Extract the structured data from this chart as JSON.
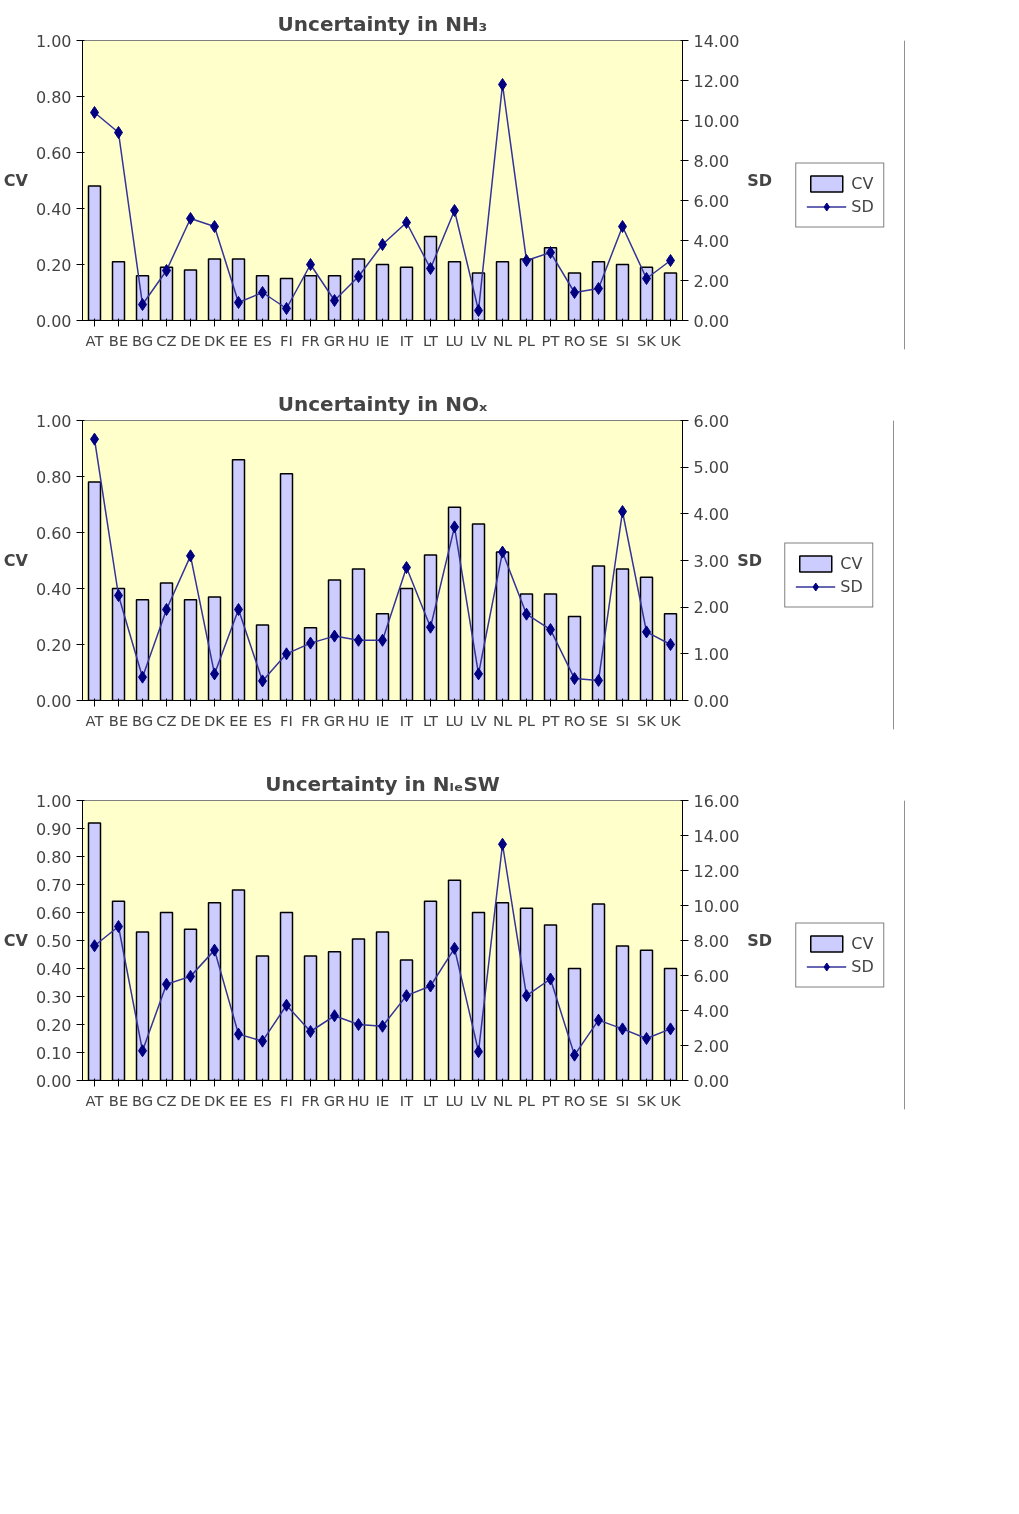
{
  "chart_data": [
    {
      "type": "bar",
      "title": "Uncertainty in NH₃",
      "ylabel": "CV",
      "y2label": "SD",
      "categories": [
        "AT",
        "BE",
        "BG",
        "CZ",
        "DE",
        "DK",
        "EE",
        "ES",
        "FI",
        "FR",
        "GR",
        "HU",
        "IE",
        "IT",
        "LT",
        "LU",
        "LV",
        "NL",
        "PL",
        "PT",
        "RO",
        "SE",
        "SI",
        "SK",
        "UK"
      ],
      "ylim": [
        0,
        1
      ],
      "yticks": [
        {
          "value": 0,
          "label": "0.00"
        },
        {
          "value": 0.2,
          "label": "0.20"
        },
        {
          "value": 0.4,
          "label": "0.40"
        },
        {
          "value": 0.6,
          "label": "0.60"
        },
        {
          "value": 0.8,
          "label": "0.80"
        },
        {
          "value": 1,
          "label": "1.00"
        }
      ],
      "y2lim": [
        0,
        14
      ],
      "y2ticks": [
        {
          "value": 0,
          "label": "0.00"
        },
        {
          "value": 2,
          "label": "2.00"
        },
        {
          "value": 4,
          "label": "4.00"
        },
        {
          "value": 6,
          "label": "6.00"
        },
        {
          "value": 8,
          "label": "8.00"
        },
        {
          "value": 10,
          "label": "10.00"
        },
        {
          "value": 12,
          "label": "12.00"
        },
        {
          "value": 14,
          "label": "14.00"
        }
      ],
      "series": [
        {
          "name": "CV",
          "color": "#ccccff",
          "values": [
            0.48,
            0.21,
            0.16,
            0.19,
            0.18,
            0.22,
            0.22,
            0.16,
            0.15,
            0.16,
            0.16,
            0.22,
            0.2,
            0.19,
            0.3,
            0.21,
            0.17,
            0.21,
            0.22,
            0.26,
            0.17,
            0.21,
            0.2,
            0.19,
            0.17
          ]
        },
        {
          "name": "SD",
          "type": "line",
          "axis": "y2",
          "color": "#000080",
          "values": [
            10.4,
            9.4,
            0.8,
            2.5,
            5.1,
            4.7,
            0.9,
            1.4,
            0.6,
            2.8,
            1.0,
            2.2,
            3.8,
            4.9,
            2.6,
            5.5,
            0.5,
            11.8,
            3.0,
            3.4,
            1.4,
            1.6,
            4.7,
            2.1,
            3.0
          ]
        }
      ],
      "legend": "right",
      "marker": "diamond",
      "line_style": "solid",
      "grid": false
    },
    {
      "type": "bar",
      "title": "Uncertainty in NOₓ",
      "ylabel": "CV",
      "y2label": "SD",
      "categories": [
        "AT",
        "BE",
        "BG",
        "CZ",
        "DE",
        "DK",
        "EE",
        "ES",
        "FI",
        "FR",
        "GR",
        "HU",
        "IE",
        "IT",
        "LT",
        "LU",
        "LV",
        "NL",
        "PL",
        "PT",
        "RO",
        "SE",
        "SI",
        "SK",
        "UK"
      ],
      "ylim": [
        0,
        1
      ],
      "yticks": [
        {
          "value": 0,
          "label": "0.00"
        },
        {
          "value": 0.2,
          "label": "0.20"
        },
        {
          "value": 0.4,
          "label": "0.40"
        },
        {
          "value": 0.6,
          "label": "0.60"
        },
        {
          "value": 0.8,
          "label": "0.80"
        },
        {
          "value": 1,
          "label": "1.00"
        }
      ],
      "y2lim": [
        0,
        6
      ],
      "y2ticks": [
        {
          "value": 0,
          "label": "0.00"
        },
        {
          "value": 1,
          "label": "1.00"
        },
        {
          "value": 2,
          "label": "2.00"
        },
        {
          "value": 3,
          "label": "3.00"
        },
        {
          "value": 4,
          "label": "4.00"
        },
        {
          "value": 5,
          "label": "5.00"
        },
        {
          "value": 6,
          "label": "6.00"
        }
      ],
      "series": [
        {
          "name": "CV",
          "color": "#ccccff",
          "values": [
            0.78,
            0.4,
            0.36,
            0.42,
            0.36,
            0.37,
            0.86,
            0.27,
            0.81,
            0.26,
            0.43,
            0.47,
            0.31,
            0.4,
            0.52,
            0.69,
            0.63,
            0.53,
            0.38,
            0.38,
            0.3,
            0.48,
            0.47,
            0.44,
            0.31
          ]
        },
        {
          "name": "SD",
          "type": "line",
          "axis": "y2",
          "color": "#000080",
          "values": [
            5.6,
            2.25,
            0.5,
            1.95,
            3.1,
            0.57,
            1.95,
            0.42,
            1.0,
            1.23,
            1.38,
            1.29,
            1.29,
            2.85,
            1.57,
            3.72,
            0.57,
            3.18,
            1.85,
            1.52,
            0.47,
            0.43,
            4.05,
            1.47,
            1.2
          ]
        }
      ],
      "legend": "right",
      "marker": "diamond",
      "line_style": "solid",
      "grid": false
    },
    {
      "type": "bar",
      "title": "Uncertainty in NₗₑSW",
      "ylabel": "CV",
      "y2label": "SD",
      "categories": [
        "AT",
        "BE",
        "BG",
        "CZ",
        "DE",
        "DK",
        "EE",
        "ES",
        "FI",
        "FR",
        "GR",
        "HU",
        "IE",
        "IT",
        "LT",
        "LU",
        "LV",
        "NL",
        "PL",
        "PT",
        "RO",
        "SE",
        "SI",
        "SK",
        "UK"
      ],
      "ylim": [
        0,
        1
      ],
      "yticks": [
        {
          "value": 0,
          "label": "0.00"
        },
        {
          "value": 0.1,
          "label": "0.10"
        },
        {
          "value": 0.2,
          "label": "0.20"
        },
        {
          "value": 0.3,
          "label": "0.30"
        },
        {
          "value": 0.4,
          "label": "0.40"
        },
        {
          "value": 0.5,
          "label": "0.50"
        },
        {
          "value": 0.6,
          "label": "0.60"
        },
        {
          "value": 0.7,
          "label": "0.70"
        },
        {
          "value": 0.8,
          "label": "0.80"
        },
        {
          "value": 0.9,
          "label": "0.90"
        },
        {
          "value": 1,
          "label": "1.00"
        }
      ],
      "y2lim": [
        0,
        16
      ],
      "y2ticks": [
        {
          "value": 0,
          "label": "0.00"
        },
        {
          "value": 2,
          "label": "2.00"
        },
        {
          "value": 4,
          "label": "4.00"
        },
        {
          "value": 6,
          "label": "6.00"
        },
        {
          "value": 8,
          "label": "8.00"
        },
        {
          "value": 10,
          "label": "10.00"
        },
        {
          "value": 12,
          "label": "12.00"
        },
        {
          "value": 14,
          "label": "14.00"
        },
        {
          "value": 16,
          "label": "16.00"
        }
      ],
      "series": [
        {
          "name": "CV",
          "color": "#ccccff",
          "values": [
            0.92,
            0.64,
            0.53,
            0.6,
            0.54,
            0.635,
            0.68,
            0.445,
            0.6,
            0.445,
            0.46,
            0.505,
            0.53,
            0.43,
            0.64,
            0.715,
            0.6,
            0.635,
            0.615,
            0.555,
            0.4,
            0.63,
            0.48,
            0.465,
            0.4
          ]
        },
        {
          "name": "SD",
          "type": "line",
          "axis": "y2",
          "color": "#000080",
          "values": [
            7.7,
            8.8,
            1.7,
            5.5,
            5.95,
            7.45,
            2.65,
            2.25,
            4.3,
            2.8,
            3.7,
            3.2,
            3.1,
            4.85,
            5.4,
            7.55,
            1.65,
            13.5,
            4.85,
            5.8,
            1.45,
            3.45,
            2.95,
            2.4,
            2.95
          ]
        }
      ],
      "legend": "right",
      "marker": "diamond",
      "line_style": "solid",
      "grid": false
    }
  ]
}
